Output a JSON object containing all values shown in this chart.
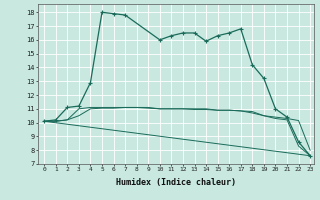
{
  "xlabel": "Humidex (Indice chaleur)",
  "bg_color": "#c8e8e0",
  "grid_color": "#ffffff",
  "line_color": "#1a6b5a",
  "xlim": [
    -0.5,
    23.3
  ],
  "ylim": [
    7,
    18.6
  ],
  "xticks": [
    0,
    1,
    2,
    3,
    4,
    5,
    6,
    7,
    8,
    9,
    10,
    11,
    12,
    13,
    14,
    15,
    16,
    17,
    18,
    19,
    20,
    21,
    22,
    23
  ],
  "yticks": [
    7,
    8,
    9,
    10,
    11,
    12,
    13,
    14,
    15,
    16,
    17,
    18
  ],
  "line1_x": [
    0,
    1,
    2,
    3,
    4,
    5,
    6,
    7,
    10,
    11,
    12,
    13,
    14,
    15,
    16,
    17,
    18,
    19,
    20,
    21,
    22,
    23
  ],
  "line1_y": [
    10.1,
    10.2,
    11.1,
    11.2,
    12.9,
    18.0,
    17.9,
    17.8,
    16.0,
    16.3,
    16.5,
    16.5,
    15.9,
    16.3,
    16.5,
    16.8,
    14.2,
    13.2,
    11.0,
    10.4,
    8.6,
    7.6
  ],
  "line2_x": [
    0,
    1,
    2,
    3,
    4,
    5,
    6,
    7,
    8,
    9,
    10,
    11,
    12,
    13,
    14,
    15,
    16,
    17,
    18,
    19,
    20,
    21,
    22,
    23
  ],
  "line2_y": [
    10.1,
    10.1,
    10.2,
    11.0,
    11.1,
    11.1,
    11.1,
    11.1,
    11.1,
    11.05,
    11.0,
    11.0,
    11.0,
    11.0,
    11.0,
    10.9,
    10.9,
    10.85,
    10.7,
    10.5,
    10.4,
    10.3,
    10.15,
    8.0
  ],
  "line3_x": [
    0,
    1,
    2,
    3,
    4,
    5,
    6,
    7,
    8,
    9,
    10,
    11,
    12,
    13,
    14,
    15,
    16,
    17,
    18,
    19,
    20,
    21,
    22,
    23
  ],
  "line3_y": [
    10.1,
    10.1,
    10.2,
    10.5,
    11.0,
    11.05,
    11.05,
    11.1,
    11.1,
    11.1,
    11.0,
    11.0,
    11.0,
    10.95,
    10.95,
    10.9,
    10.9,
    10.85,
    10.8,
    10.5,
    10.3,
    10.2,
    8.3,
    7.6
  ],
  "line4_x": [
    0,
    23
  ],
  "line4_y": [
    10.1,
    7.6
  ]
}
